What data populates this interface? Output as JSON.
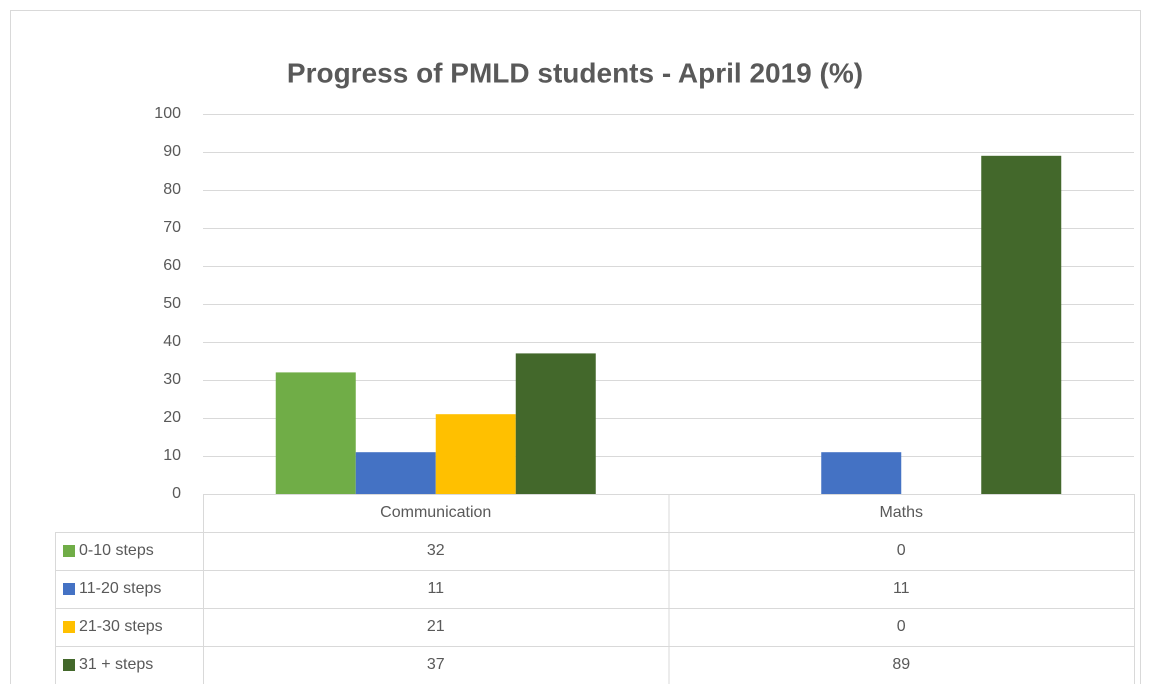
{
  "chart_data": {
    "type": "bar",
    "title": "Progress of PMLD students - April 2019 (%)",
    "categories": [
      "Communication",
      "Maths"
    ],
    "series": [
      {
        "name": "0-10 steps",
        "color": "#70ad47",
        "values": [
          32,
          0
        ]
      },
      {
        "name": "11-20 steps",
        "color": "#4472c4",
        "values": [
          11,
          11
        ]
      },
      {
        "name": "21-30 steps",
        "color": "#ffc000",
        "values": [
          21,
          0
        ]
      },
      {
        "name": "31 + steps",
        "color": "#43682b",
        "values": [
          37,
          89
        ]
      }
    ],
    "ylim": [
      0,
      100
    ],
    "yticks": [
      0,
      10,
      20,
      30,
      40,
      50,
      60,
      70,
      80,
      90,
      100
    ],
    "grid": true,
    "data_table": true
  }
}
